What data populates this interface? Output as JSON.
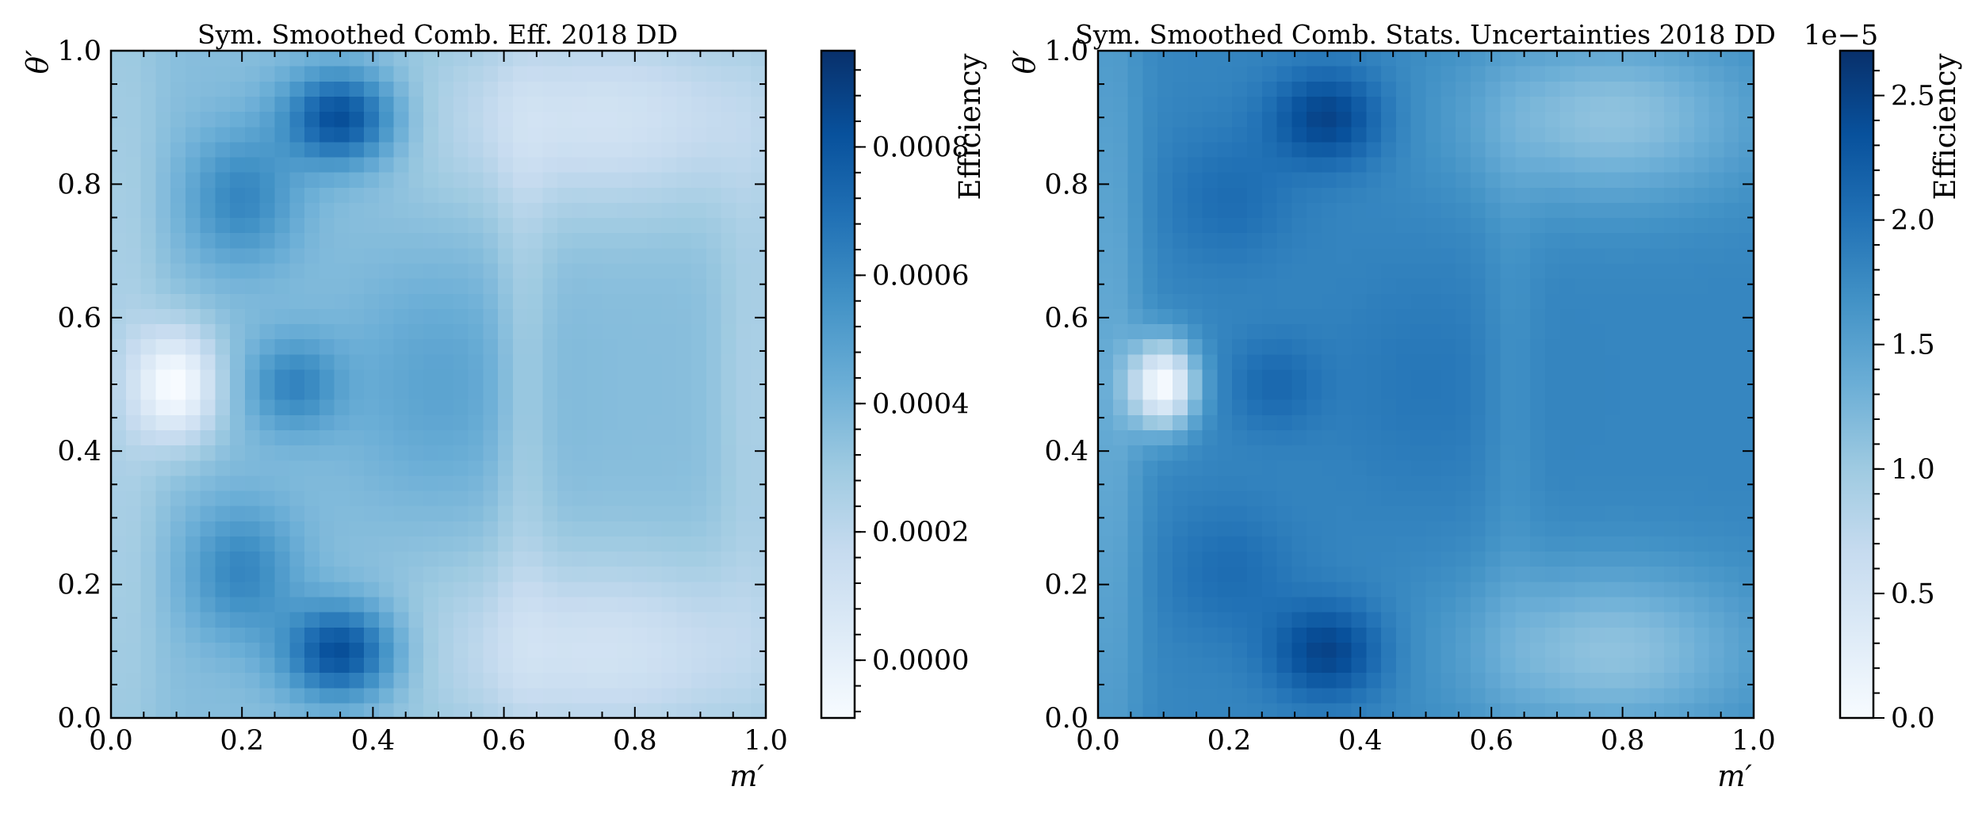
{
  "chart_data": [
    {
      "type": "heatmap",
      "title": "Sym. Smoothed Comb. Eff. 2018 DD",
      "xlabel": "m′",
      "ylabel": "θ′",
      "xlim": [
        0.0,
        1.0
      ],
      "ylim": [
        0.0,
        1.0
      ],
      "x_ticks": [
        "0.0",
        "0.2",
        "0.4",
        "0.6",
        "0.8",
        "1.0"
      ],
      "y_ticks": [
        "0.0",
        "0.2",
        "0.4",
        "0.6",
        "0.8",
        "1.0"
      ],
      "colormap": "Blues",
      "colorbar": {
        "label": "Efficiency",
        "range": [
          -9e-05,
          0.00095
        ],
        "ticks": [
          0.0,
          0.0002,
          0.0004,
          0.0006,
          0.0008
        ],
        "tick_labels": [
          "0.0000",
          "0.0002",
          "0.0004",
          "0.0006",
          "0.0008"
        ],
        "offset_text": ""
      },
      "features": {
        "base": 0.00036,
        "components": [
          {
            "x": 0.35,
            "y": 0.9,
            "sx": 0.06,
            "sy": 0.05,
            "a": 0.0005
          },
          {
            "x": 0.35,
            "y": 0.1,
            "sx": 0.06,
            "sy": 0.05,
            "a": 0.0005
          },
          {
            "x": 0.2,
            "y": 0.78,
            "sx": 0.06,
            "sy": 0.07,
            "a": 0.00025
          },
          {
            "x": 0.2,
            "y": 0.22,
            "sx": 0.06,
            "sy": 0.07,
            "a": 0.00025
          },
          {
            "x": 0.28,
            "y": 0.5,
            "sx": 0.05,
            "sy": 0.05,
            "a": 0.00025
          },
          {
            "x": 0.5,
            "y": 0.5,
            "sx": 0.1,
            "sy": 0.12,
            "a": 0.00012
          },
          {
            "x": 0.1,
            "y": 0.5,
            "sx": 0.045,
            "sy": 0.06,
            "a": -0.00045
          },
          {
            "x": 0.75,
            "y": 0.9,
            "sx": 0.2,
            "sy": 0.1,
            "a": -0.00025
          },
          {
            "x": 0.75,
            "y": 0.1,
            "sx": 0.2,
            "sy": 0.1,
            "a": -0.00025
          },
          {
            "x": 0.02,
            "y": 0.5,
            "sx": 0.04,
            "sy": 0.5,
            "a": -0.0001
          },
          {
            "x": 0.98,
            "y": 0.5,
            "sx": 0.04,
            "sy": 0.3,
            "a": -0.0001
          },
          {
            "x": 0.63,
            "y": 0.5,
            "sx": 0.03,
            "sy": 0.3,
            "a": -0.0001
          }
        ]
      }
    },
    {
      "type": "heatmap",
      "title": "Sym. Smoothed Comb. Stats. Uncertainties 2018 DD",
      "xlabel": "m′",
      "ylabel": "θ′",
      "xlim": [
        0.0,
        1.0
      ],
      "ylim": [
        0.0,
        1.0
      ],
      "x_ticks": [
        "0.0",
        "0.2",
        "0.4",
        "0.6",
        "0.8",
        "1.0"
      ],
      "y_ticks": [
        "0.0",
        "0.2",
        "0.4",
        "0.6",
        "0.8",
        "1.0"
      ],
      "colormap": "Blues",
      "colorbar": {
        "label": "Efficiency",
        "range": [
          0.0,
          2.68
        ],
        "ticks": [
          0.0,
          0.5,
          1.0,
          1.5,
          2.0,
          2.5
        ],
        "tick_labels": [
          "0.0",
          "0.5",
          "1.0",
          "1.5",
          "2.0",
          "2.5"
        ],
        "offset_text": "1e−5"
      },
      "features": {
        "base": 1.8,
        "components": [
          {
            "x": 0.35,
            "y": 0.9,
            "sx": 0.06,
            "sy": 0.05,
            "a": 0.7
          },
          {
            "x": 0.35,
            "y": 0.1,
            "sx": 0.06,
            "sy": 0.05,
            "a": 0.7
          },
          {
            "x": 0.2,
            "y": 0.78,
            "sx": 0.07,
            "sy": 0.07,
            "a": 0.25
          },
          {
            "x": 0.2,
            "y": 0.22,
            "sx": 0.07,
            "sy": 0.07,
            "a": 0.25
          },
          {
            "x": 0.27,
            "y": 0.5,
            "sx": 0.05,
            "sy": 0.05,
            "a": 0.3
          },
          {
            "x": 0.5,
            "y": 0.5,
            "sx": 0.1,
            "sy": 0.12,
            "a": 0.15
          },
          {
            "x": 0.1,
            "y": 0.5,
            "sx": 0.035,
            "sy": 0.045,
            "a": -1.8
          },
          {
            "x": 0.78,
            "y": 0.9,
            "sx": 0.16,
            "sy": 0.09,
            "a": -0.7
          },
          {
            "x": 0.78,
            "y": 0.1,
            "sx": 0.16,
            "sy": 0.09,
            "a": -0.7
          },
          {
            "x": 0.02,
            "y": 0.5,
            "sx": 0.035,
            "sy": 0.5,
            "a": -0.4
          },
          {
            "x": 0.63,
            "y": 0.5,
            "sx": 0.03,
            "sy": 0.3,
            "a": -0.15
          }
        ]
      }
    }
  ]
}
